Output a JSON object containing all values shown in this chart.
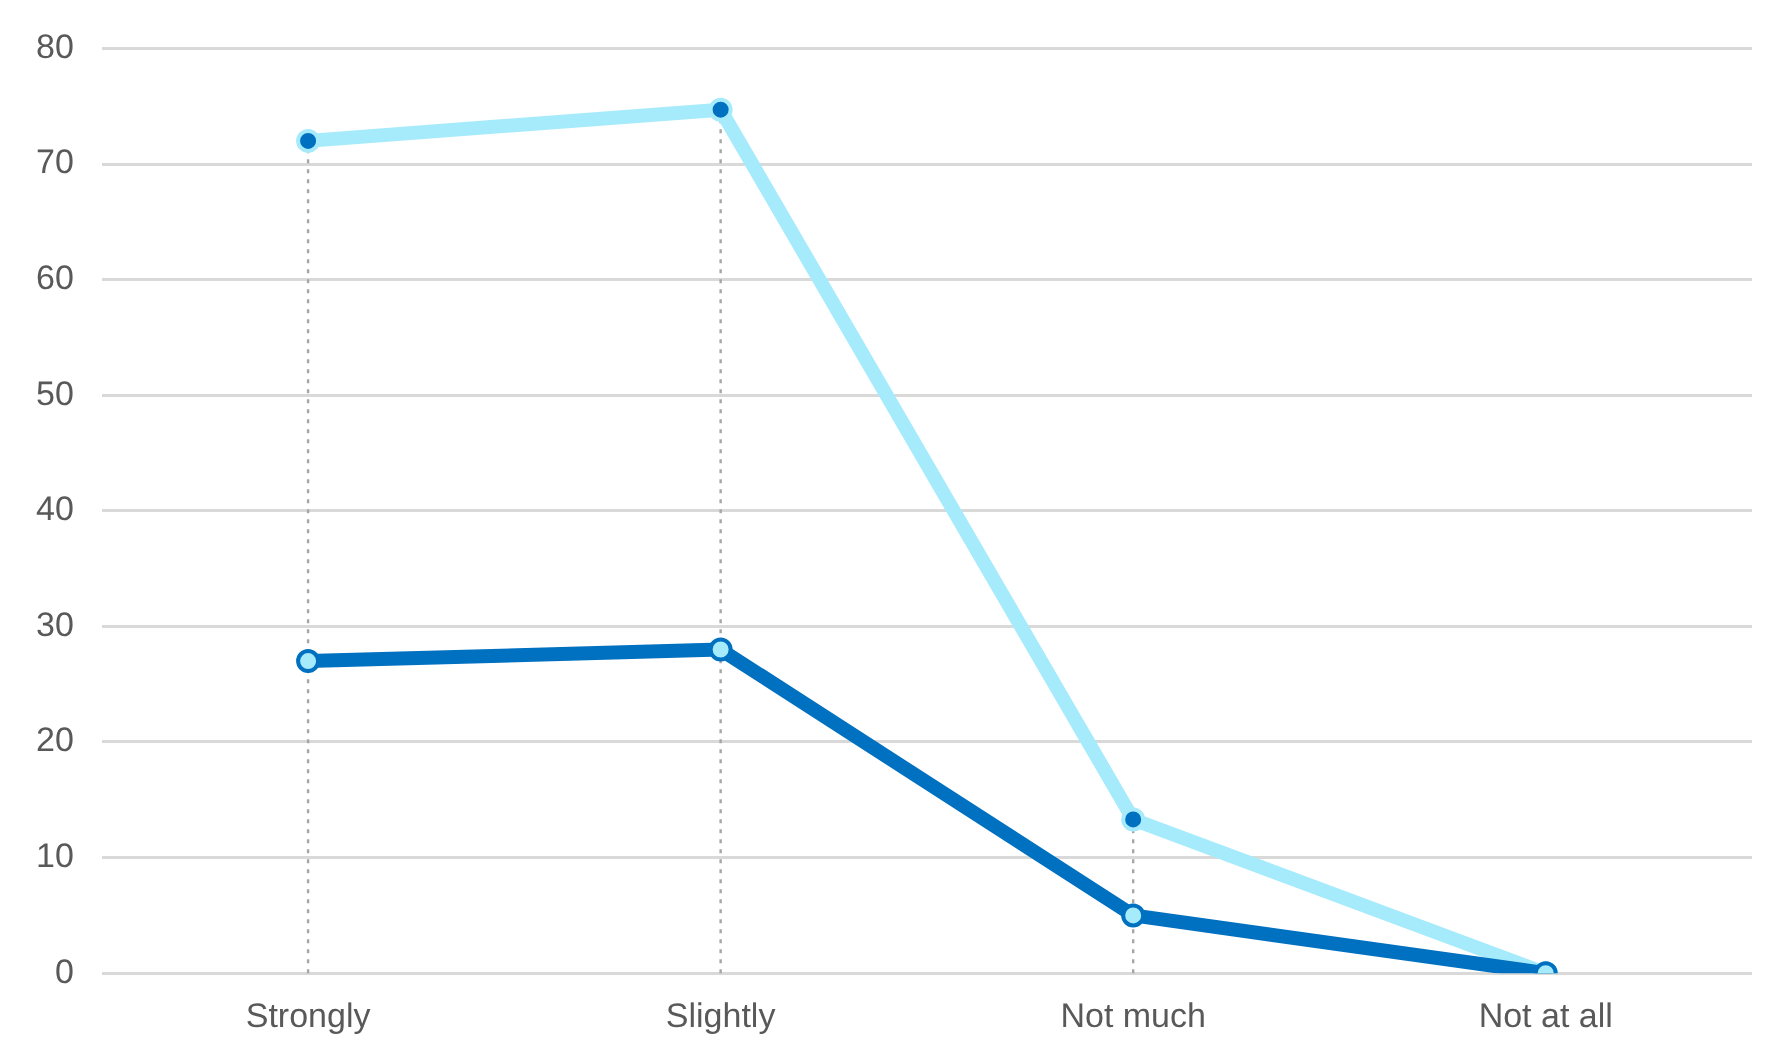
{
  "chart_data": {
    "type": "line",
    "categories": [
      "Strongly",
      "Slightly",
      "Not much",
      "Not at all"
    ],
    "series": [
      {
        "color": "#0070c0",
        "values": [
          27,
          28,
          5,
          0
        ]
      },
      {
        "color": "#a6ebfc",
        "values": [
          72,
          74.7,
          13.3,
          0
        ]
      }
    ],
    "ylim": [
      0,
      80
    ],
    "yticks": [
      0,
      10,
      20,
      30,
      40,
      50,
      60,
      70,
      80
    ],
    "grid": "y",
    "marker": "circle",
    "line_style": "solid",
    "legend": false,
    "ref_lines": [
      {
        "axis": "x",
        "value": "Strongly",
        "color": "#a6a6a6",
        "line_style": "dotted"
      },
      {
        "axis": "x",
        "value": "Slightly",
        "color": "#a6a6a6",
        "line_style": "dotted"
      },
      {
        "axis": "x",
        "value": "Not much",
        "color": "#a6a6a6",
        "line_style": "dotted"
      }
    ]
  }
}
